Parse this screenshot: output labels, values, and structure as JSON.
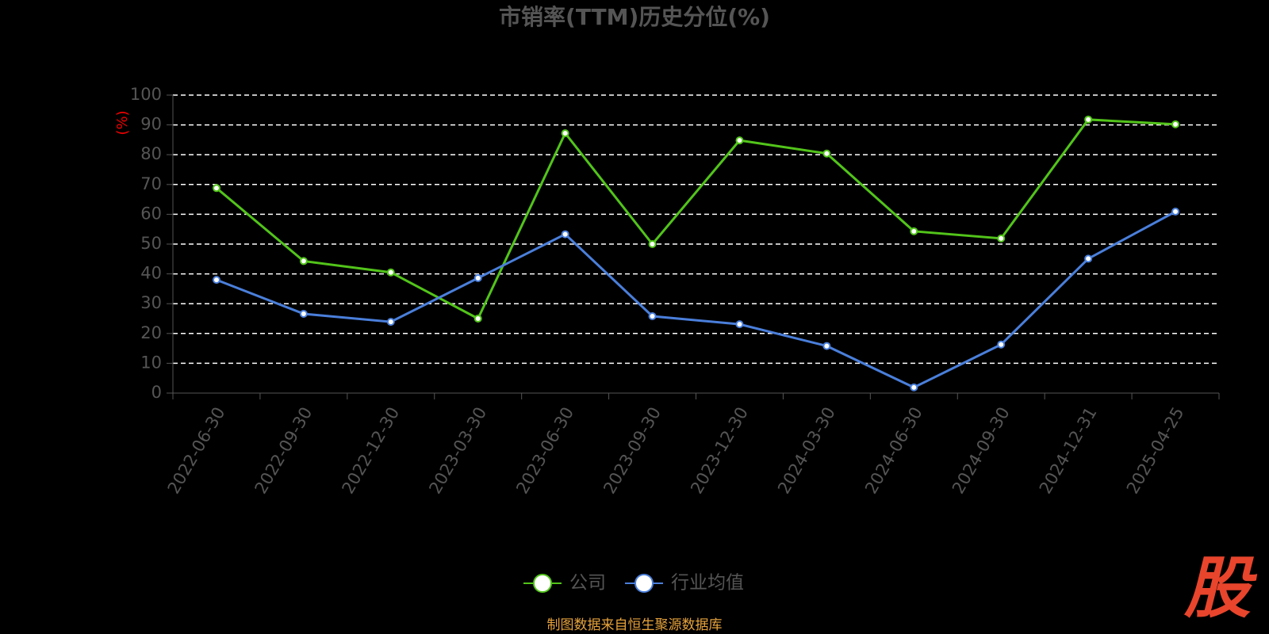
{
  "chart_data": {
    "type": "line",
    "title": "市销率(TTM)历史分位(%)",
    "y_label": "(%)",
    "categories": [
      "2022-06-30",
      "2022-09-30",
      "2022-12-30",
      "2023-03-30",
      "2023-06-30",
      "2023-09-30",
      "2023-12-30",
      "2024-03-30",
      "2024-06-30",
      "2024-09-30",
      "2024-12-31",
      "2025-04-25"
    ],
    "series": [
      {
        "name": "公司",
        "color": "#52c41a",
        "values": [
          68.8,
          44.3,
          40.5,
          25.0,
          87.2,
          50.0,
          84.8,
          80.4,
          54.3,
          51.9,
          91.8,
          90.2
        ]
      },
      {
        "name": "行业均值",
        "color": "#4a7fdb",
        "values": [
          38.0,
          26.6,
          23.9,
          38.6,
          53.3,
          25.8,
          23.1,
          15.8,
          1.9,
          16.3,
          45.1,
          60.9
        ]
      }
    ],
    "ylim": [
      0,
      100
    ],
    "yticks": [
      0,
      10,
      20,
      30,
      40,
      50,
      60,
      70,
      80,
      90,
      100
    ],
    "grid": true,
    "legend": "bottom",
    "source": "制图数据来自恒生聚源数据库",
    "watermark": "股"
  }
}
